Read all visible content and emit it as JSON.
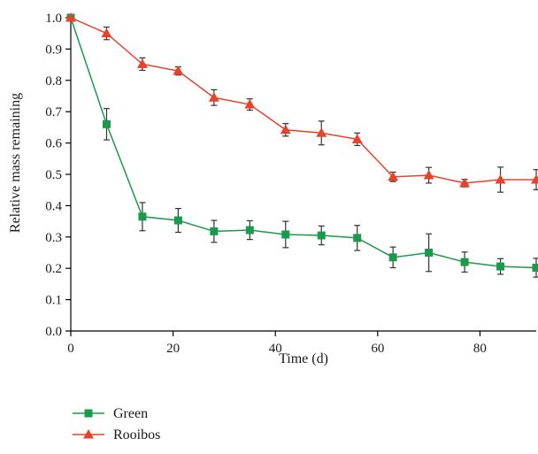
{
  "chart_data": {
    "type": "line",
    "xlabel": "Time (d)",
    "ylabel": "Relative mass remaining",
    "xlim": [
      0,
      91
    ],
    "ylim": [
      0,
      1.0
    ],
    "x_ticks": [
      "0",
      "20",
      "40",
      "60",
      "80"
    ],
    "y_ticks": [
      "0.0",
      "0.1",
      "0.2",
      "0.3",
      "0.4",
      "0.5",
      "0.6",
      "0.7",
      "0.8",
      "0.9",
      "1.0"
    ],
    "x_tick_values": [
      0,
      20,
      40,
      60,
      80
    ],
    "y_tick_values": [
      0,
      0.1,
      0.2,
      0.3,
      0.4,
      0.5,
      0.6,
      0.7,
      0.8,
      0.9,
      1.0
    ],
    "legend_position": "bottom-left",
    "grid": false,
    "series": [
      {
        "name": "Green",
        "color": "#1a9b4b",
        "marker": "square",
        "x": [
          0,
          7,
          14,
          21,
          28,
          35,
          42,
          49,
          56,
          63,
          70,
          77,
          84,
          91
        ],
        "y": [
          1.0,
          0.66,
          0.365,
          0.353,
          0.318,
          0.322,
          0.308,
          0.305,
          0.297,
          0.235,
          0.25,
          0.22,
          0.206,
          0.202
        ],
        "err": [
          0.0,
          0.05,
          0.045,
          0.038,
          0.035,
          0.03,
          0.042,
          0.03,
          0.04,
          0.033,
          0.06,
          0.032,
          0.025,
          0.03
        ]
      },
      {
        "name": "Rooibos",
        "color": "#e8432a",
        "marker": "triangle",
        "x": [
          0,
          7,
          14,
          21,
          28,
          35,
          42,
          49,
          56,
          63,
          70,
          77,
          84,
          91
        ],
        "y": [
          1.0,
          0.95,
          0.852,
          0.83,
          0.745,
          0.723,
          0.642,
          0.632,
          0.612,
          0.492,
          0.497,
          0.472,
          0.483,
          0.483
        ],
        "err": [
          0.0,
          0.02,
          0.02,
          0.013,
          0.025,
          0.018,
          0.02,
          0.038,
          0.02,
          0.015,
          0.025,
          0.012,
          0.04,
          0.032
        ]
      }
    ]
  }
}
